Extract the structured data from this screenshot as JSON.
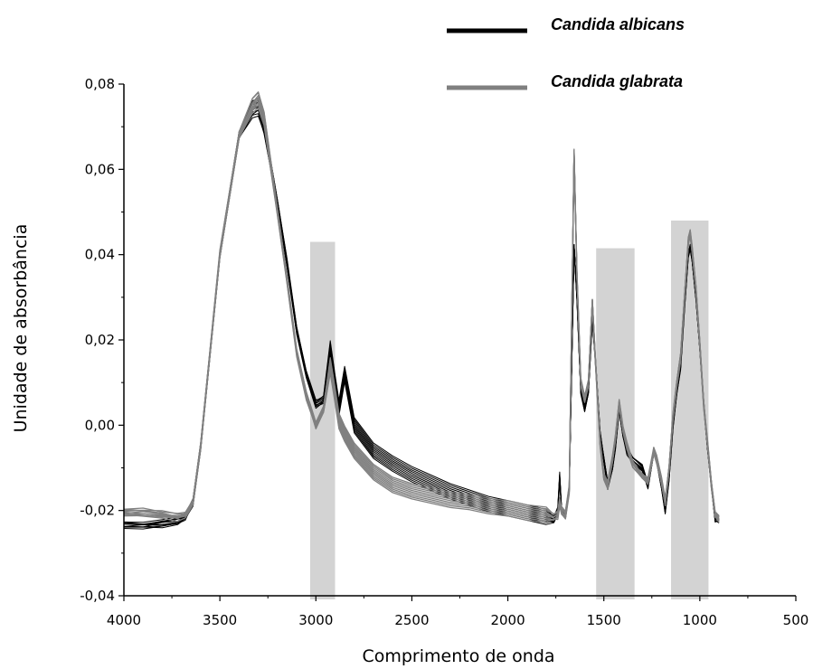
{
  "chart_data": {
    "type": "line",
    "xlabel": "Comprimento de onda",
    "ylabel": "Unidade de absorbância",
    "xlim": [
      4000,
      500
    ],
    "ylim": [
      -0.04,
      0.08
    ],
    "x_reversed": true,
    "x_ticks": [
      {
        "value": 4000,
        "label": "4000"
      },
      {
        "value": 3500,
        "label": "3500"
      },
      {
        "value": 3000,
        "label": "3000"
      },
      {
        "value": 2500,
        "label": "2500"
      },
      {
        "value": 2000,
        "label": "2000"
      },
      {
        "value": 1500,
        "label": "1500"
      },
      {
        "value": 1000,
        "label": "1000"
      },
      {
        "value": 500,
        "label": "500"
      }
    ],
    "y_ticks": [
      {
        "value": -0.04,
        "label": "-0,04"
      },
      {
        "value": -0.02,
        "label": "-0,02"
      },
      {
        "value": 0.0,
        "label": "0,00"
      },
      {
        "value": 0.02,
        "label": "0,02"
      },
      {
        "value": 0.04,
        "label": "0,04"
      },
      {
        "value": 0.06,
        "label": "0,06"
      },
      {
        "value": 0.08,
        "label": "0,08"
      }
    ],
    "grid": false,
    "legend_position": "top-right",
    "highlight_regions": [
      {
        "x_from": 3030,
        "x_to": 2900,
        "y_top": 0.043,
        "color": "#d3d3d3"
      },
      {
        "x_from": 1540,
        "x_to": 1340,
        "y_top": 0.0415,
        "color": "#d3d3d3"
      },
      {
        "x_from": 1150,
        "x_to": 955,
        "y_top": 0.048,
        "color": "#d3d3d3"
      }
    ],
    "series": [
      {
        "name": "Candida albicans",
        "color": "#000000",
        "replicates": 10,
        "x": [
          4000,
          3900,
          3800,
          3720,
          3680,
          3640,
          3600,
          3500,
          3400,
          3330,
          3300,
          3270,
          3200,
          3150,
          3100,
          3050,
          3000,
          2960,
          2925,
          2900,
          2880,
          2850,
          2800,
          2700,
          2600,
          2500,
          2400,
          2300,
          2200,
          2100,
          2000,
          1900,
          1800,
          1760,
          1740,
          1730,
          1720,
          1700,
          1680,
          1655,
          1640,
          1620,
          1600,
          1580,
          1560,
          1545,
          1520,
          1500,
          1480,
          1455,
          1440,
          1420,
          1400,
          1380,
          1350,
          1300,
          1270,
          1240,
          1225,
          1200,
          1180,
          1160,
          1140,
          1120,
          1100,
          1080,
          1060,
          1050,
          1040,
          1020,
          1000,
          980,
          960,
          940,
          920,
          900
        ],
        "y": [
          -0.0235,
          -0.0235,
          -0.023,
          -0.0225,
          -0.0215,
          -0.018,
          -0.005,
          0.04,
          0.068,
          0.074,
          0.0745,
          0.07,
          0.052,
          0.038,
          0.022,
          0.012,
          0.005,
          0.006,
          0.018,
          0.01,
          0.004,
          0.012,
          0.0,
          -0.006,
          -0.009,
          -0.0115,
          -0.0135,
          -0.0155,
          -0.017,
          -0.0185,
          -0.0195,
          -0.0205,
          -0.0215,
          -0.022,
          -0.02,
          -0.012,
          -0.02,
          -0.021,
          -0.015,
          0.042,
          0.03,
          0.008,
          0.004,
          0.008,
          0.025,
          0.016,
          -0.002,
          -0.008,
          -0.014,
          -0.01,
          -0.005,
          0.004,
          -0.002,
          -0.006,
          -0.008,
          -0.01,
          -0.014,
          -0.006,
          -0.008,
          -0.014,
          -0.02,
          -0.012,
          0.0,
          0.008,
          0.014,
          0.028,
          0.04,
          0.042,
          0.039,
          0.03,
          0.018,
          0.005,
          -0.005,
          -0.014,
          -0.022,
          -0.022
        ]
      },
      {
        "name": "Candida glabrata",
        "color": "#808080",
        "replicates": 10,
        "x": [
          4000,
          3900,
          3800,
          3720,
          3680,
          3640,
          3600,
          3500,
          3400,
          3330,
          3300,
          3270,
          3200,
          3150,
          3100,
          3050,
          3000,
          2960,
          2925,
          2900,
          2880,
          2850,
          2800,
          2700,
          2600,
          2500,
          2400,
          2300,
          2200,
          2100,
          2000,
          1900,
          1800,
          1760,
          1740,
          1730,
          1720,
          1700,
          1680,
          1655,
          1640,
          1620,
          1600,
          1580,
          1560,
          1545,
          1520,
          1500,
          1480,
          1455,
          1440,
          1420,
          1400,
          1380,
          1350,
          1300,
          1270,
          1240,
          1225,
          1200,
          1180,
          1160,
          1140,
          1120,
          1100,
          1080,
          1060,
          1050,
          1040,
          1020,
          1000,
          980,
          960,
          940,
          920,
          900
        ],
        "y": [
          -0.0205,
          -0.0205,
          -0.021,
          -0.0215,
          -0.021,
          -0.018,
          -0.005,
          0.04,
          0.068,
          0.075,
          0.0765,
          0.072,
          0.05,
          0.034,
          0.017,
          0.007,
          0.0,
          0.004,
          0.014,
          0.007,
          0.001,
          -0.002,
          -0.006,
          -0.011,
          -0.014,
          -0.0155,
          -0.0165,
          -0.0175,
          -0.018,
          -0.019,
          -0.0195,
          -0.0205,
          -0.021,
          -0.0215,
          -0.021,
          -0.018,
          -0.02,
          -0.021,
          -0.015,
          0.064,
          0.035,
          0.01,
          0.006,
          0.01,
          0.029,
          0.016,
          -0.004,
          -0.012,
          -0.014,
          -0.008,
          -0.003,
          0.005,
          -0.001,
          -0.005,
          -0.009,
          -0.012,
          -0.013,
          -0.006,
          -0.008,
          -0.013,
          -0.018,
          -0.01,
          0.002,
          0.01,
          0.016,
          0.03,
          0.043,
          0.045,
          0.041,
          0.032,
          0.019,
          0.005,
          -0.004,
          -0.014,
          -0.021,
          -0.022
        ]
      }
    ]
  }
}
